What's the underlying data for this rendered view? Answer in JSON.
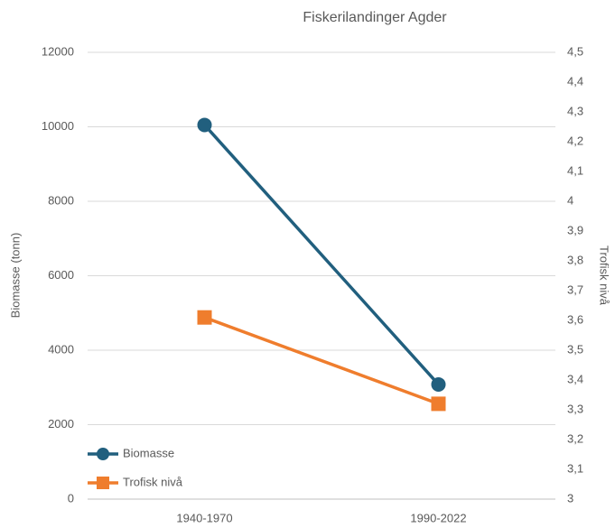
{
  "chart_data": {
    "type": "line",
    "title": "Fiskerilandinger Agder",
    "categories": [
      "1940-1970",
      "1990-2022"
    ],
    "series": [
      {
        "name": "Biomasse",
        "color": "#215f7e",
        "values": [
          10050,
          3080
        ],
        "marker": "circle"
      },
      {
        "name": "Trofisk nivå",
        "color": "#ef7d2d",
        "values": [
          3.61,
          3.32
        ],
        "axis": "y2",
        "marker": "square"
      }
    ],
    "ylabel": "Biomasse (tonn)",
    "y2label": "Trofisk nivå",
    "ylim": [
      0,
      12000
    ],
    "yticks": [
      0,
      2000,
      4000,
      6000,
      8000,
      10000,
      12000
    ],
    "y2lim": [
      3,
      4.5
    ],
    "y2ticks": [
      3,
      {
        "value": 3.1,
        "label": "3,1"
      },
      {
        "value": 3.2,
        "label": "3,2"
      },
      {
        "value": 3.3,
        "label": "3,3"
      },
      {
        "value": 3.4,
        "label": "3,4"
      },
      {
        "value": 3.5,
        "label": "3,5"
      },
      {
        "value": 3.6,
        "label": "3,6"
      },
      {
        "value": 3.7,
        "label": "3,7"
      },
      {
        "value": 3.8,
        "label": "3,8"
      },
      {
        "value": 3.9,
        "label": "3,9"
      },
      4,
      {
        "value": 4.1,
        "label": "4,1"
      },
      {
        "value": 4.2,
        "label": "4,2"
      },
      {
        "value": 4.3,
        "label": "4,3"
      },
      {
        "value": 4.4,
        "label": "4,4"
      },
      {
        "value": 4.5,
        "label": "4,5"
      }
    ],
    "grid": true,
    "legend": "lower left"
  }
}
